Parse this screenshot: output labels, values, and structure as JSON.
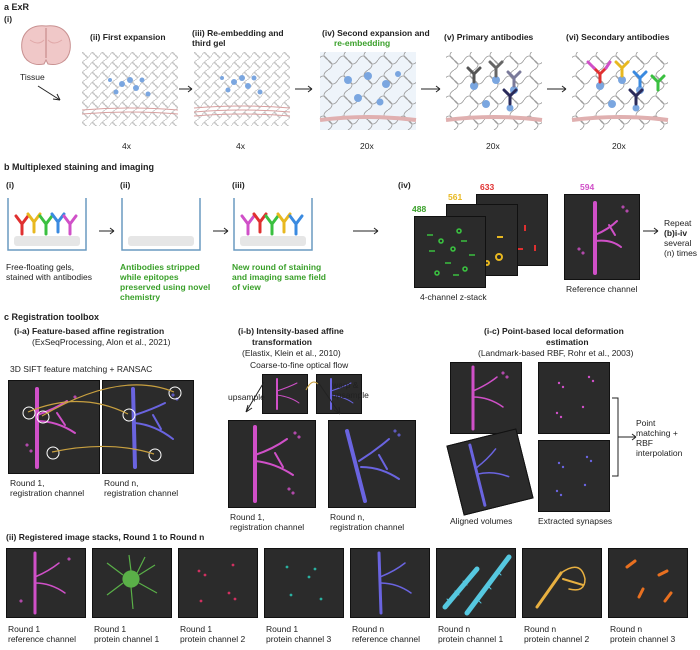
{
  "section_a": {
    "header": "a ExR",
    "roman_i": "(i)",
    "tissue_label": "Tissue",
    "steps": [
      {
        "title": "(ii) First expansion",
        "scale": "4x"
      },
      {
        "title": "(iii) Re-embedding and",
        "title2": "third gel",
        "scale": "4x"
      },
      {
        "title": "(iv) Second expansion and",
        "title2": "re-embedding",
        "scale": "20x"
      },
      {
        "title": "(v) Primary antibodies",
        "scale": "20x"
      },
      {
        "title": "(vi) Secondary antibodies",
        "scale": "20x"
      }
    ]
  },
  "section_b": {
    "header": "b Multiplexed staining and imaging",
    "p1": {
      "roman": "(i)",
      "caption1": "Free-floating gels,",
      "caption2": "stained with antibodies"
    },
    "p2": {
      "roman": "(ii)",
      "caption1": "Antibodies stripped",
      "caption2": "while epitopes",
      "caption3": "preserved using novel",
      "caption4": "chemistry"
    },
    "p3": {
      "roman": "(iii)",
      "caption1": "New round of staining",
      "caption2": "and imaging same field",
      "caption3": "of view"
    },
    "p4": {
      "roman": "(iv)",
      "ch488": "488",
      "ch561": "561",
      "ch633": "633",
      "ch594": "594",
      "zstack_label": "4-channel z-stack",
      "ref_label": "Reference channel"
    },
    "repeat1": "Repeat",
    "repeat2": "(b)i-iv",
    "repeat3": "several",
    "repeat4": "(n) times"
  },
  "section_c": {
    "header": "c Registration toolbox",
    "ia": {
      "title": "(i-a) Feature-based affine registration",
      "subtitle": "(ExSeqProcessing, Alon et al., 2021)",
      "method": "3D SIFT feature matching + RANSAC",
      "round1_a": "Round 1,",
      "round1_b": "registration channel",
      "roundn_a": "Round n,",
      "roundn_b": "registration channel"
    },
    "ib": {
      "title": "(i-b) Intensity-based affine",
      "title2": "transformation",
      "subtitle": "(Elastix, Klein et al., 2010)",
      "method": "Coarse-to-fine optical flow",
      "upsample": "upsample",
      "warp1": "warp &",
      "warp2": "upsample",
      "round1_a": "Round 1,",
      "round1_b": "registration channel",
      "roundn_a": "Round n,",
      "roundn_b": "registration channel"
    },
    "ic": {
      "title": "(i-c) Point-based local deformation",
      "title2": "estimation",
      "subtitle": "(Landmark-based RBF, Rohr et al., 2003)",
      "aligned": "Aligned volumes",
      "extracted": "Extracted synapses",
      "pm1": "Point",
      "pm2": "matching +",
      "pm3": "RBF",
      "pm4": "interpolation"
    },
    "ii_header": "(ii) Registered image stacks, Round 1 to Round n",
    "stacks": [
      {
        "l1": "Round 1",
        "l2": "reference channel"
      },
      {
        "l1": "Round 1",
        "l2": "protein channel 1"
      },
      {
        "l1": "Round 1",
        "l2": "protein channel 2"
      },
      {
        "l1": "Round 1",
        "l2": "protein channel 3"
      },
      {
        "l1": "Round n",
        "l2": "reference channel"
      },
      {
        "l1": "Round n",
        "l2": "protein channel 1"
      },
      {
        "l1": "Round n",
        "l2": "protein channel 2"
      },
      {
        "l1": "Round n",
        "l2": "protein channel 3"
      }
    ]
  },
  "colors": {
    "magenta": "#d050c8",
    "blue": "#6a64e0",
    "green": "#3aa02a",
    "yellow": "#e8b820",
    "red": "#e03030",
    "cyan": "#56c8e0",
    "orange": "#e87020",
    "panel": "#2b2b2b"
  }
}
